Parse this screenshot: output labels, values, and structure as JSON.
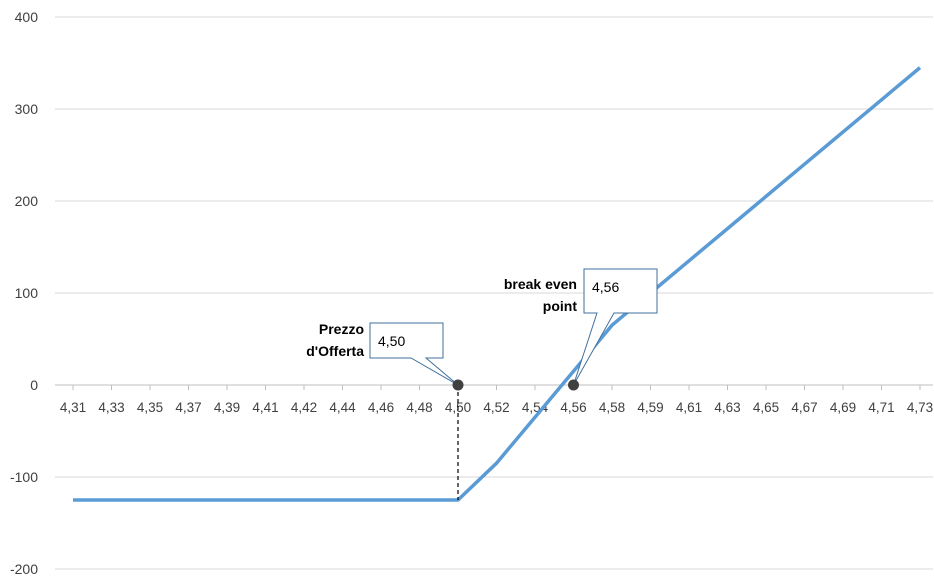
{
  "chart_data": {
    "type": "line",
    "x_labels": [
      "4,31",
      "4,33",
      "4,35",
      "4,37",
      "4,39",
      "4,41",
      "4,42",
      "4,44",
      "4,46",
      "4,48",
      "4,50",
      "4,52",
      "4,54",
      "4,56",
      "4,58",
      "4,59",
      "4,61",
      "4,63",
      "4,65",
      "4,67",
      "4,69",
      "4,71",
      "4,73"
    ],
    "x": [
      4.31,
      4.33,
      4.35,
      4.37,
      4.39,
      4.41,
      4.42,
      4.44,
      4.46,
      4.48,
      4.5,
      4.52,
      4.54,
      4.56,
      4.58,
      4.59,
      4.61,
      4.63,
      4.65,
      4.67,
      4.69,
      4.71,
      4.73
    ],
    "series": [
      {
        "values": [
          -125,
          -125,
          -125,
          -125,
          -125,
          -125,
          -125,
          -125,
          -125,
          -125,
          -125,
          -85,
          -35,
          15,
          65,
          100,
          135,
          170,
          205,
          240,
          275,
          310,
          345
        ]
      }
    ],
    "ylim": [
      -200,
      400
    ],
    "y_ticks": [
      "400",
      "300",
      "200",
      "100",
      "0",
      "-100",
      "-200"
    ],
    "grid": true,
    "line_color": "#5b9bd5",
    "annotations": [
      {
        "label": "Prezzo d'Offerta",
        "label_lines": [
          "Prezzo",
          "d'Offerta"
        ],
        "callout": "4,50",
        "x": 4.5,
        "y": 0
      },
      {
        "label": "break even point",
        "label_lines": [
          "break even",
          "point"
        ],
        "callout": "4,56",
        "x": 4.56,
        "y": 0
      }
    ]
  }
}
